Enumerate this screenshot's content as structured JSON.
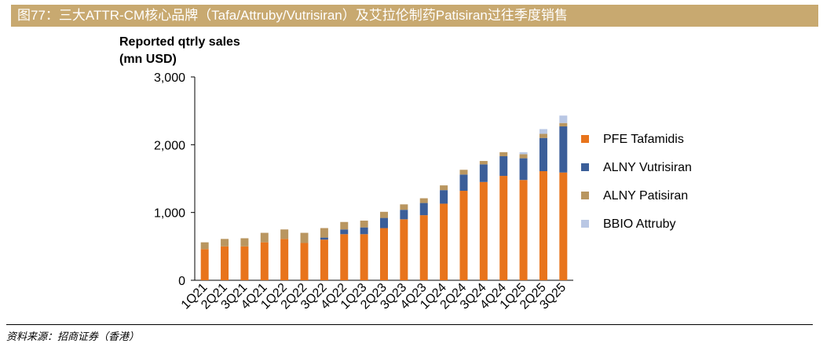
{
  "header": {
    "title": "图77：三大ATTR-CM核心品牌（Tafa/Attruby/Vutrisiran）及艾拉伦制药Patisiran过往季度销售"
  },
  "footer": {
    "source": "资料来源：招商证券（香港）"
  },
  "colors": {
    "header_bg": "#c8a970",
    "pfe_tafamidis": "#e8741c",
    "alny_vutrisiran": "#3b5e99",
    "alny_patisiran": "#b99660",
    "bbio_attruby": "#b9c7e4"
  },
  "chart_data": {
    "type": "bar",
    "stacked": true,
    "ylabel_lines": [
      "Reported qtrly sales",
      "(mn USD)"
    ],
    "xlabel": "",
    "ylim": [
      0,
      3000
    ],
    "yticks": [
      0,
      1000,
      2000,
      3000
    ],
    "ytick_labels": [
      "0",
      "1,000",
      "2,000",
      "3,000"
    ],
    "legend_position": "right",
    "grid": false,
    "categories": [
      "1Q21",
      "2Q21",
      "3Q21",
      "4Q21",
      "1Q22",
      "2Q22",
      "3Q22",
      "4Q22",
      "1Q23",
      "2Q23",
      "3Q23",
      "4Q23",
      "1Q24",
      "2Q24",
      "3Q24",
      "4Q24",
      "1Q25",
      "2Q25",
      "3Q25"
    ],
    "series": [
      {
        "name": "PFE Tafamidis",
        "color": "#e8741c",
        "values": [
          460,
          500,
          500,
          560,
          610,
          550,
          600,
          680,
          680,
          770,
          900,
          960,
          1130,
          1320,
          1450,
          1540,
          1480,
          1610,
          1590
        ]
      },
      {
        "name": "ALNY Vutrisiran",
        "color": "#3b5e99",
        "values": [
          0,
          0,
          0,
          0,
          0,
          0,
          30,
          70,
          100,
          150,
          140,
          180,
          200,
          240,
          260,
          290,
          320,
          490,
          680
        ]
      },
      {
        "name": "ALNY Patisiran",
        "color": "#b99660",
        "values": [
          100,
          110,
          120,
          140,
          140,
          150,
          140,
          110,
          100,
          90,
          80,
          70,
          70,
          70,
          50,
          60,
          60,
          60,
          50
        ]
      },
      {
        "name": "BBIO Attruby",
        "color": "#b9c7e4",
        "values": [
          0,
          0,
          0,
          0,
          0,
          0,
          0,
          0,
          0,
          0,
          0,
          0,
          0,
          0,
          0,
          0,
          30,
          70,
          110
        ]
      }
    ]
  }
}
